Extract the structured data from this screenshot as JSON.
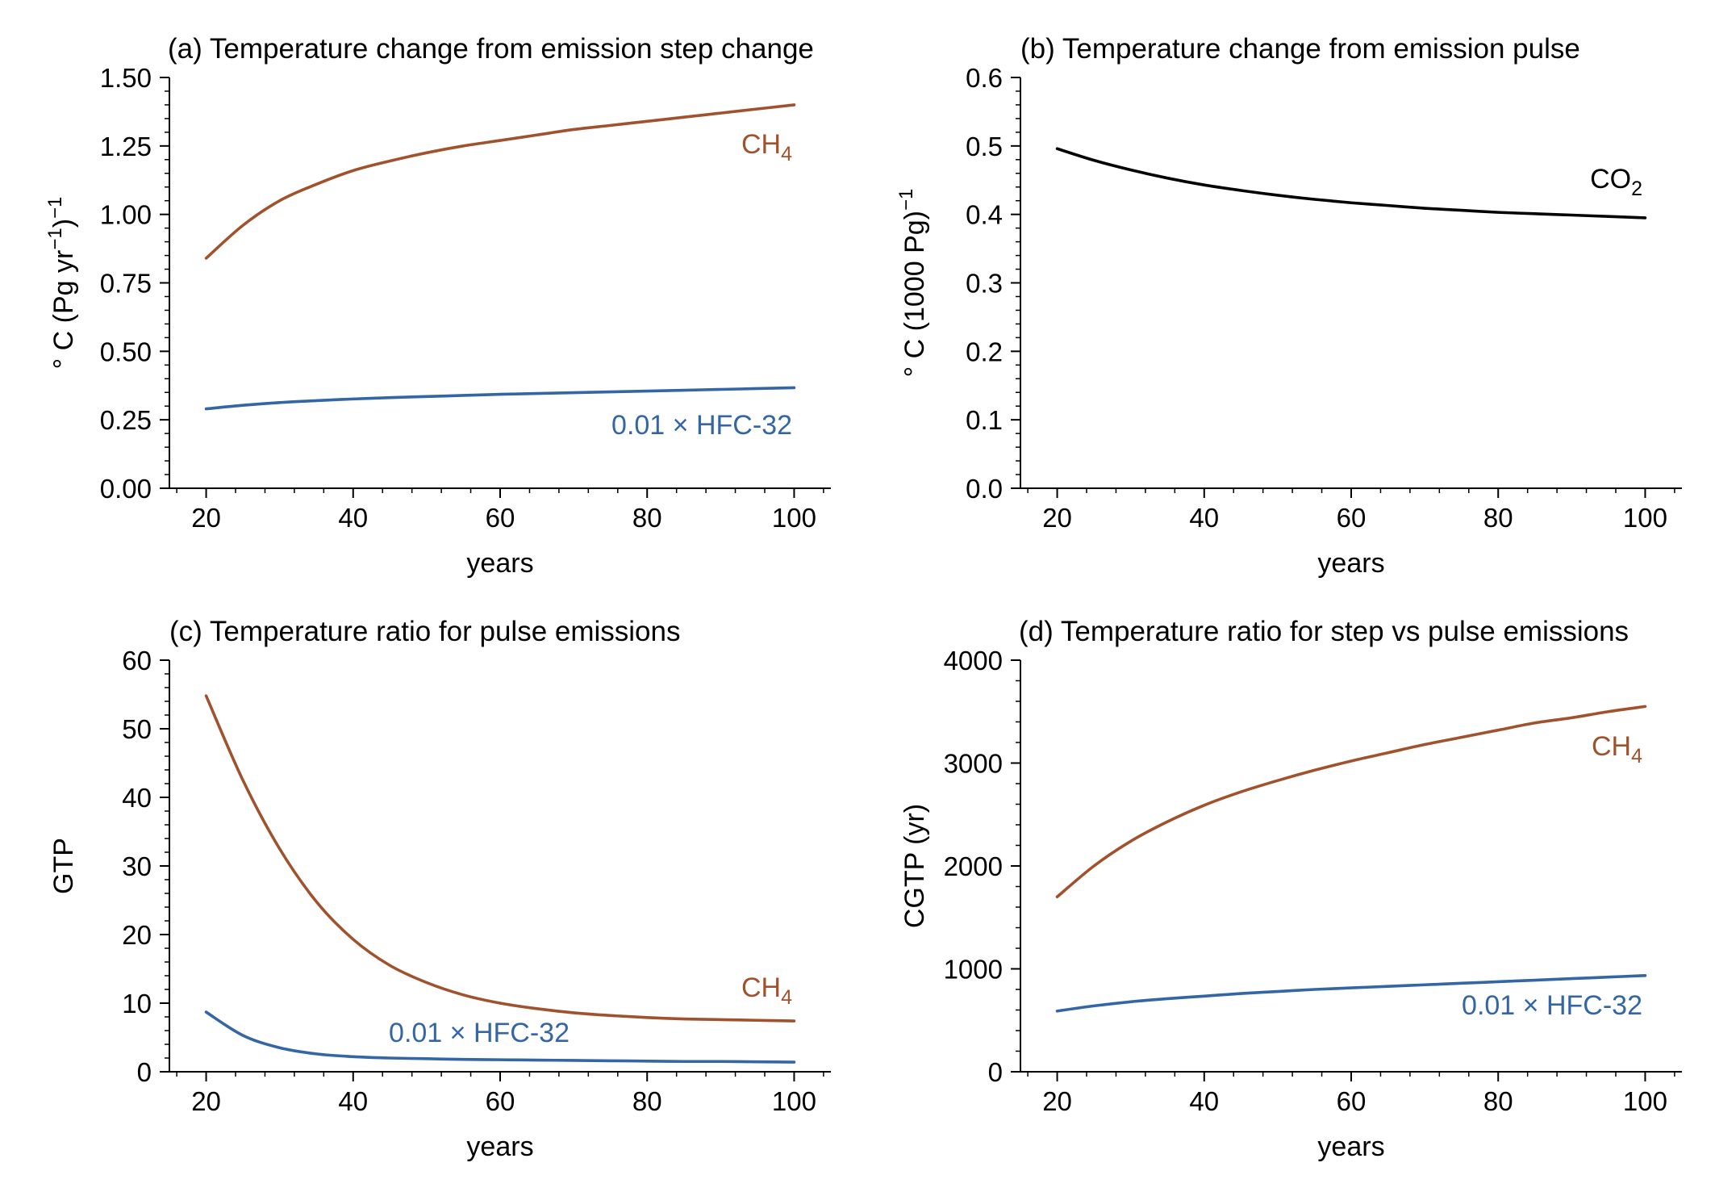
{
  "colors": {
    "ch4": "#a0522d",
    "hfc": "#3465a4",
    "co2": "#000000",
    "axis": "#000000"
  },
  "chart_data": [
    {
      "type": "line",
      "title": "(a) Temperature change from emission step change",
      "xlabel": "years",
      "ylabel": "° C (Pg yr⁻¹)⁻¹",
      "xlim": [
        15,
        105
      ],
      "ylim": [
        0,
        1.5
      ],
      "xticks": [
        "20",
        "40",
        "60",
        "80",
        "100"
      ],
      "yticks": [
        "0.00",
        "0.25",
        "0.50",
        "0.75",
        "1.00",
        "1.25",
        "1.50"
      ],
      "grid": false,
      "series": [
        {
          "name": "CH4",
          "label": "CH",
          "label_sub": "4",
          "color": "#a0522d",
          "x": [
            20,
            25,
            30,
            35,
            40,
            45,
            50,
            55,
            60,
            65,
            70,
            75,
            80,
            85,
            90,
            95,
            100
          ],
          "y": [
            0.84,
            0.96,
            1.05,
            1.11,
            1.16,
            1.195,
            1.225,
            1.25,
            1.27,
            1.29,
            1.31,
            1.325,
            1.34,
            1.355,
            1.37,
            1.385,
            1.4
          ]
        },
        {
          "name": "0.01 × HFC-32",
          "label": "0.01 × HFC-32",
          "label_sub": "",
          "color": "#3465a4",
          "x": [
            20,
            25,
            30,
            35,
            40,
            45,
            50,
            55,
            60,
            65,
            70,
            75,
            80,
            85,
            90,
            95,
            100
          ],
          "y": [
            0.29,
            0.303,
            0.313,
            0.32,
            0.326,
            0.331,
            0.335,
            0.339,
            0.343,
            0.346,
            0.349,
            0.352,
            0.355,
            0.358,
            0.361,
            0.364,
            0.367
          ]
        }
      ]
    },
    {
      "type": "line",
      "title": "(b) Temperature change from emission pulse",
      "xlabel": "years",
      "ylabel": "° C (1000 Pg)⁻¹",
      "xlim": [
        15,
        105
      ],
      "ylim": [
        0,
        0.6
      ],
      "xticks": [
        "20",
        "40",
        "60",
        "80",
        "100"
      ],
      "yticks": [
        "0.0",
        "0.1",
        "0.2",
        "0.3",
        "0.4",
        "0.5",
        "0.6"
      ],
      "grid": false,
      "series": [
        {
          "name": "CO2",
          "label": "CO",
          "label_sub": "2",
          "color": "#000000",
          "x": [
            20,
            25,
            30,
            35,
            40,
            45,
            50,
            55,
            60,
            65,
            70,
            75,
            80,
            85,
            90,
            95,
            100
          ],
          "y": [
            0.496,
            0.479,
            0.465,
            0.453,
            0.443,
            0.435,
            0.428,
            0.422,
            0.417,
            0.413,
            0.409,
            0.406,
            0.403,
            0.401,
            0.399,
            0.397,
            0.395
          ]
        }
      ]
    },
    {
      "type": "line",
      "title": "(c) Temperature ratio for pulse emissions",
      "xlabel": "years",
      "ylabel": "GTP",
      "xlim": [
        15,
        105
      ],
      "ylim": [
        0,
        60
      ],
      "xticks": [
        "20",
        "40",
        "60",
        "80",
        "100"
      ],
      "yticks": [
        "0",
        "10",
        "20",
        "30",
        "40",
        "50",
        "60"
      ],
      "grid": false,
      "series": [
        {
          "name": "CH4",
          "label": "CH",
          "label_sub": "4",
          "color": "#a0522d",
          "x": [
            20,
            25,
            30,
            35,
            40,
            45,
            50,
            55,
            60,
            65,
            70,
            75,
            80,
            85,
            90,
            95,
            100
          ],
          "y": [
            54.8,
            42.5,
            32.5,
            24.8,
            19.3,
            15.5,
            13.0,
            11.2,
            10.0,
            9.2,
            8.6,
            8.2,
            7.9,
            7.7,
            7.6,
            7.5,
            7.4
          ]
        },
        {
          "name": "0.01 × HFC-32",
          "label": "0.01 × HFC-32",
          "label_sub": "",
          "color": "#3465a4",
          "x": [
            20,
            25,
            30,
            35,
            40,
            45,
            50,
            55,
            60,
            65,
            70,
            75,
            80,
            85,
            90,
            95,
            100
          ],
          "y": [
            8.7,
            5.3,
            3.5,
            2.6,
            2.2,
            2.0,
            1.9,
            1.8,
            1.75,
            1.7,
            1.65,
            1.6,
            1.55,
            1.5,
            1.5,
            1.45,
            1.4
          ]
        }
      ]
    },
    {
      "type": "line",
      "title": "(d) Temperature ratio for step vs pulse emissions",
      "xlabel": "years",
      "ylabel": "CGTP (yr)",
      "xlim": [
        15,
        105
      ],
      "ylim": [
        0,
        4000
      ],
      "xticks": [
        "20",
        "40",
        "60",
        "80",
        "100"
      ],
      "yticks": [
        "0",
        "1000",
        "2000",
        "3000",
        "4000"
      ],
      "grid": false,
      "series": [
        {
          "name": "CH4",
          "label": "CH",
          "label_sub": "4",
          "color": "#a0522d",
          "x": [
            20,
            25,
            30,
            35,
            40,
            45,
            50,
            55,
            60,
            65,
            70,
            75,
            80,
            85,
            90,
            95,
            100
          ],
          "y": [
            1700,
            2000,
            2240,
            2430,
            2590,
            2720,
            2830,
            2930,
            3020,
            3100,
            3180,
            3250,
            3320,
            3390,
            3440,
            3500,
            3550
          ]
        },
        {
          "name": "0.01 × HFC-32",
          "label": "0.01 × HFC-32",
          "label_sub": "",
          "color": "#3465a4",
          "x": [
            20,
            25,
            30,
            35,
            40,
            45,
            50,
            55,
            60,
            65,
            70,
            75,
            80,
            85,
            90,
            95,
            100
          ],
          "y": [
            590,
            640,
            680,
            710,
            735,
            760,
            780,
            800,
            815,
            830,
            845,
            860,
            875,
            890,
            905,
            920,
            935
          ]
        }
      ]
    }
  ]
}
